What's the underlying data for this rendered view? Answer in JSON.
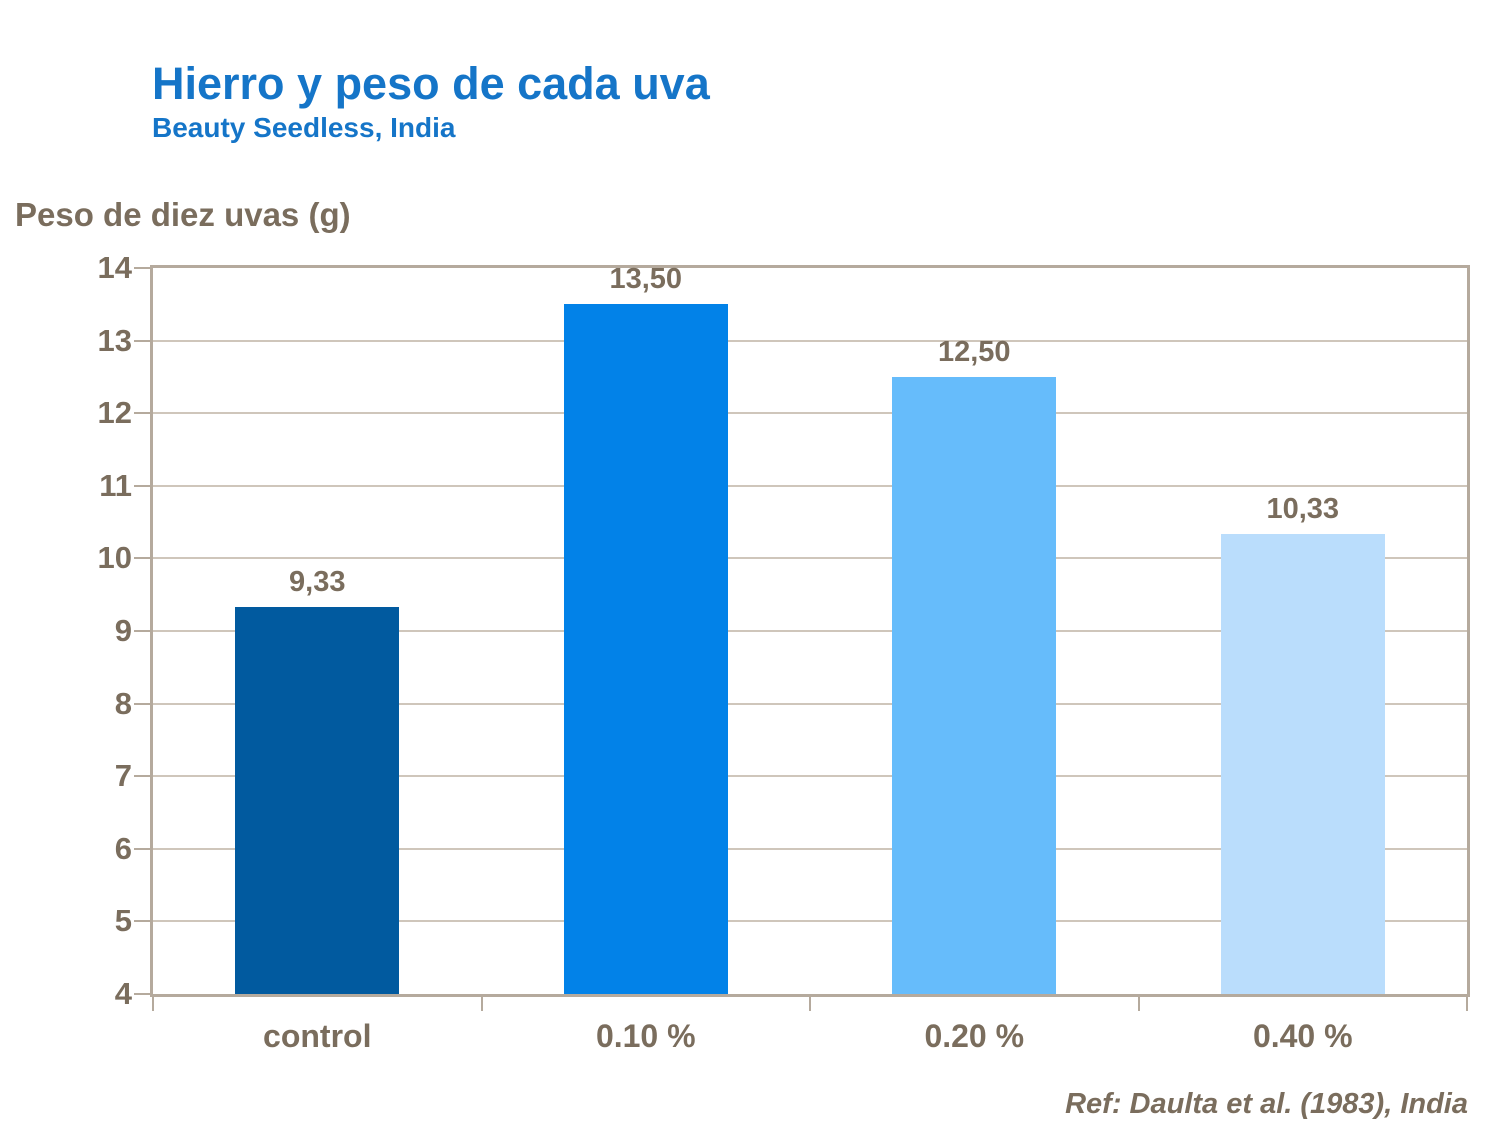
{
  "header": {
    "title": "Hierro y peso de cada uva",
    "subtitle": "Beauty Seedless, India"
  },
  "footer": {
    "reference": "Ref: Daulta et al. (1983), India"
  },
  "colors": {
    "title_blue": "#1575c8",
    "text_brown": "#7a6d5d",
    "plot_border": "#b5aa9d",
    "gridline": "#cfc6bb",
    "background": "#ffffff",
    "bar_colors": [
      "#015a9f",
      "#0282e8",
      "#66bcfb",
      "#baddfc"
    ]
  },
  "chart_data": {
    "type": "bar",
    "title": "Hierro y peso de cada uva",
    "subtitle": "Beauty Seedless, India",
    "ylabel": "Peso de diez uvas (g)",
    "xlabel": "",
    "categories": [
      "control",
      "0.10 %",
      "0.20 %",
      "0.40 %"
    ],
    "values": [
      9.33,
      13.5,
      12.5,
      10.33
    ],
    "value_labels": [
      "9,33",
      "13,50",
      "12,50",
      "10,33"
    ],
    "ylim": [
      4,
      14
    ],
    "ytick_step": 1,
    "yticks": [
      4,
      5,
      6,
      7,
      8,
      9,
      10,
      11,
      12,
      13,
      14
    ],
    "grid": true,
    "legend": "none",
    "annotation": "Ref: Daulta et al. (1983), India"
  }
}
